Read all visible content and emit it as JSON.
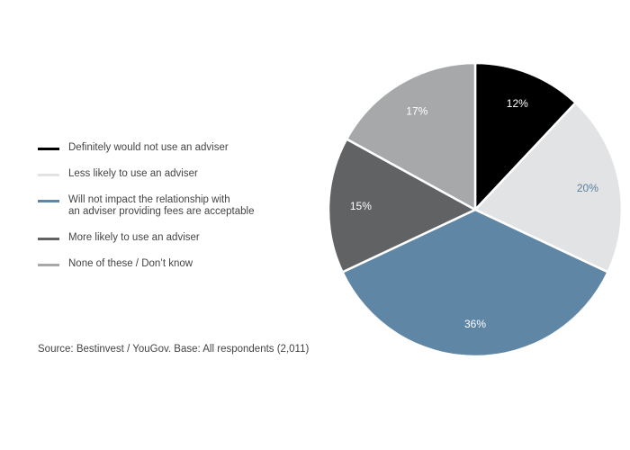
{
  "chart_data": {
    "type": "pie",
    "title": "",
    "slices": [
      {
        "label": "Definitely would not use an adviser",
        "value": 12,
        "display": "12%",
        "color": "#000000",
        "label_color": "#ffffff"
      },
      {
        "label": "Less likely to use an adviser",
        "value": 20,
        "display": "20%",
        "color": "#e2e3e4",
        "label_color": "#5a7f9f"
      },
      {
        "label": "Will not impact the relationship with\nan adviser providing fees are acceptable",
        "value": 36,
        "display": "36%",
        "color": "#5f86a5",
        "label_color": "#ffffff"
      },
      {
        "label": "More likely to use an adviser",
        "value": 15,
        "display": "15%",
        "color": "#616264",
        "label_color": "#ffffff"
      },
      {
        "label": "None of these / Don’t know",
        "value": 17,
        "display": "17%",
        "color": "#a7a8aa",
        "label_color": "#ffffff"
      }
    ],
    "legend_placement": "left"
  },
  "source": "Source: Bestinvest / YouGov. Base: All respondents (2,011)"
}
